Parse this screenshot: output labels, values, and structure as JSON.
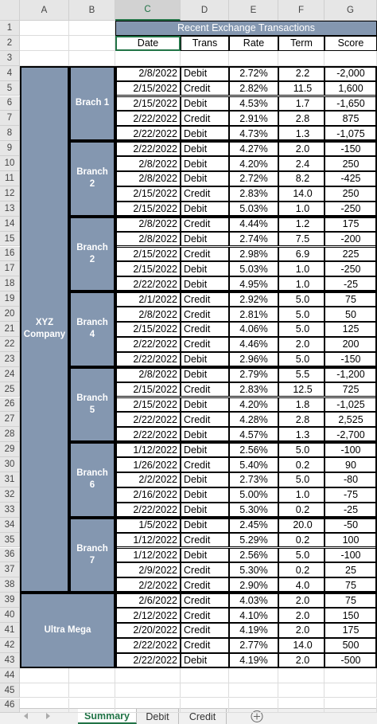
{
  "columns": [
    "A",
    "B",
    "C",
    "D",
    "E",
    "F",
    "G"
  ],
  "row_numbers": [
    1,
    2,
    3,
    4,
    5,
    6,
    7,
    8,
    9,
    10,
    11,
    12,
    13,
    14,
    15,
    16,
    17,
    18,
    19,
    20,
    21,
    22,
    23,
    24,
    25,
    26,
    27,
    28,
    29,
    30,
    31,
    32,
    33,
    34,
    35,
    36,
    37,
    38,
    39,
    40,
    41,
    42,
    43,
    44,
    45,
    46
  ],
  "table": {
    "title": "Recent Exchange Transactions",
    "headers": [
      "Date",
      "Trans",
      "Rate",
      "Term",
      "Score"
    ],
    "groups": [
      {
        "name": "XYZ Company",
        "branches": [
          {
            "name": "Brach 1",
            "rows": [
              [
                "2/8/2022",
                "Debit",
                "2.72%",
                "2.2",
                "-2,000"
              ],
              [
                "2/15/2022",
                "Credit",
                "2.82%",
                "11.5",
                "1,600"
              ],
              [
                "2/15/2022",
                "Debit",
                "4.53%",
                "1.7",
                "-1,650"
              ],
              [
                "2/22/2022",
                "Credit",
                "2.91%",
                "2.8",
                "875"
              ],
              [
                "2/22/2022",
                "Debit",
                "4.73%",
                "1.3",
                "-1,075"
              ]
            ]
          },
          {
            "name": "Branch 2",
            "rows": [
              [
                "2/22/2022",
                "Debit",
                "4.27%",
                "2.0",
                "-150"
              ],
              [
                "2/8/2022",
                "Debit",
                "4.20%",
                "2.4",
                "250"
              ],
              [
                "2/8/2022",
                "Debit",
                "2.72%",
                "8.2",
                "-425"
              ],
              [
                "2/15/2022",
                "Credit",
                "2.83%",
                "14.0",
                "250"
              ],
              [
                "2/15/2022",
                "Debit",
                "5.03%",
                "1.0",
                "-250"
              ]
            ]
          },
          {
            "name": "Branch 2",
            "rows": [
              [
                "2/8/2022",
                "Credit",
                "4.44%",
                "1.2",
                "175"
              ],
              [
                "2/8/2022",
                "Debit",
                "2.74%",
                "7.5",
                "-200"
              ],
              [
                "2/15/2022",
                "Credit",
                "2.98%",
                "6.9",
                "225"
              ],
              [
                "2/15/2022",
                "Debit",
                "5.03%",
                "1.0",
                "-250"
              ],
              [
                "2/22/2022",
                "Debit",
                "4.95%",
                "1.0",
                "-25"
              ]
            ]
          },
          {
            "name": "Branch 4",
            "rows": [
              [
                "2/1/2022",
                "Credit",
                "2.92%",
                "5.0",
                "75"
              ],
              [
                "2/8/2022",
                "Credit",
                "2.81%",
                "5.0",
                "50"
              ],
              [
                "2/15/2022",
                "Credit",
                "4.06%",
                "5.0",
                "125"
              ],
              [
                "2/22/2022",
                "Credit",
                "4.46%",
                "2.0",
                "200"
              ],
              [
                "2/22/2022",
                "Debit",
                "2.96%",
                "5.0",
                "-150"
              ]
            ]
          },
          {
            "name": "Branch 5",
            "rows": [
              [
                "2/8/2022",
                "Debit",
                "2.79%",
                "5.5",
                "-1,200"
              ],
              [
                "2/15/2022",
                "Credit",
                "2.83%",
                "12.5",
                "725"
              ],
              [
                "2/15/2022",
                "Debit",
                "4.20%",
                "1.8",
                "-1,025"
              ],
              [
                "2/22/2022",
                "Credit",
                "4.28%",
                "2.8",
                "2,525"
              ],
              [
                "2/22/2022",
                "Debit",
                "4.57%",
                "1.3",
                "-2,700"
              ]
            ]
          },
          {
            "name": "Branch 6",
            "rows": [
              [
                "1/12/2022",
                "Debit",
                "2.56%",
                "5.0",
                "-100"
              ],
              [
                "1/26/2022",
                "Credit",
                "5.40%",
                "0.2",
                "90"
              ],
              [
                "2/2/2022",
                "Debit",
                "2.73%",
                "5.0",
                "-80"
              ],
              [
                "2/16/2022",
                "Debit",
                "5.00%",
                "1.0",
                "-75"
              ],
              [
                "2/22/2022",
                "Debit",
                "5.30%",
                "0.2",
                "-25"
              ]
            ]
          },
          {
            "name": "Branch 7",
            "rows": [
              [
                "1/5/2022",
                "Debit",
                "2.45%",
                "20.0",
                "-50"
              ],
              [
                "1/12/2022",
                "Credit",
                "5.29%",
                "0.2",
                "100"
              ],
              [
                "1/12/2022",
                "Debit",
                "2.56%",
                "5.0",
                "-100"
              ],
              [
                "2/9/2022",
                "Credit",
                "5.30%",
                "0.2",
                "25"
              ],
              [
                "2/2/2022",
                "Credit",
                "2.90%",
                "4.0",
                "75"
              ]
            ]
          }
        ]
      },
      {
        "name": "Ultra Mega",
        "rows": [
          [
            "2/6/2022",
            "Credit",
            "4.03%",
            "2.0",
            "75"
          ],
          [
            "2/12/2022",
            "Credit",
            "4.10%",
            "2.0",
            "150"
          ],
          [
            "2/20/2022",
            "Credit",
            "4.19%",
            "2.0",
            "175"
          ],
          [
            "2/22/2022",
            "Credit",
            "2.77%",
            "14.0",
            "500"
          ],
          [
            "2/22/2022",
            "Debit",
            "4.19%",
            "2.0",
            "-500"
          ]
        ]
      }
    ]
  },
  "tabs": [
    "Summary",
    "Debit",
    "Credit"
  ]
}
